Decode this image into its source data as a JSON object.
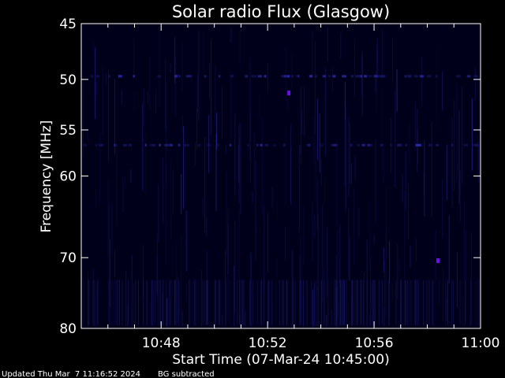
{
  "chart_data": {
    "type": "heatmap",
    "title": "Solar radio Flux (Glasgow)",
    "xlabel": "Start Time (07-Mar-24 10:45:00)",
    "ylabel": "Frequency [MHz]",
    "xlim": [
      "10:45:00",
      "11:00:00"
    ],
    "ylim": [
      80,
      45
    ],
    "x_ticks": [
      "10:48",
      "10:52",
      "10:56",
      "11:00"
    ],
    "y_ticks": [
      45,
      50,
      55,
      60,
      70,
      80
    ],
    "colors": {
      "background": "#000000",
      "plot_fill": "#00001a",
      "signal_dim": "#14145a",
      "signal_mid": "#2a2aa8",
      "signal_bright": "#6a10e6",
      "axis": "#ffffff"
    },
    "highlights": [
      {
        "time": "10:52:48",
        "freq_mhz": 51.3
      },
      {
        "time": "10:58:24",
        "freq_mhz": 70.4
      }
    ],
    "rfi_bands_mhz": [
      49.7,
      56.6
    ],
    "background_subtracted": true
  },
  "footer": {
    "updated": "Updated Thu Mar  7 11:16:52 2024",
    "note": "BG subtracted"
  }
}
